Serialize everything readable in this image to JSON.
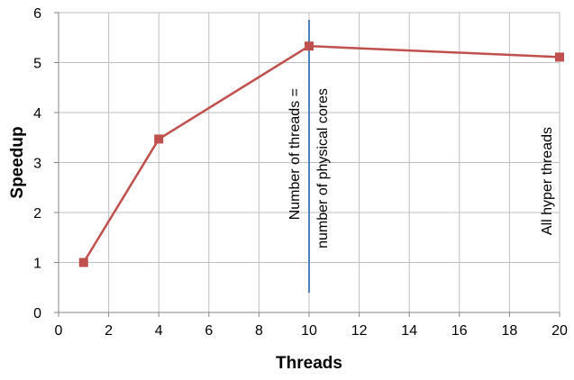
{
  "chart_data": {
    "type": "scatter",
    "xlabel": "Threads",
    "ylabel": "Speedup",
    "xlim": [
      0,
      20
    ],
    "ylim": [
      0,
      6
    ],
    "xticks": [
      "0",
      "2",
      "4",
      "6",
      "8",
      "10",
      "12",
      "14",
      "16",
      "18",
      "20"
    ],
    "yticks": [
      "0",
      "1",
      "2",
      "3",
      "4",
      "5",
      "6"
    ],
    "grid": true,
    "series": [
      {
        "x": [
          1,
          4,
          10,
          20
        ],
        "y": [
          1.0,
          3.47,
          5.33,
          5.11
        ],
        "color": "#c0504d",
        "marker": "square"
      }
    ],
    "reference_line": {
      "x": 10,
      "color": "#4f81bd"
    },
    "annotations": [
      {
        "lines": [
          "Number of threads =",
          "number of physical cores"
        ],
        "x": 10
      },
      {
        "lines": [
          "All hyper threads"
        ],
        "x": 20
      }
    ]
  }
}
